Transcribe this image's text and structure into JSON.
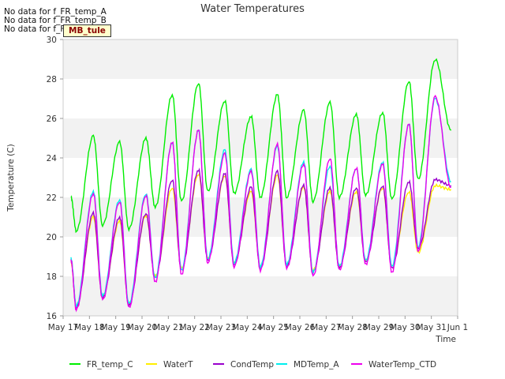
{
  "chart_data": {
    "type": "line",
    "title": "Water Temperatures",
    "xlabel": "Time",
    "ylabel": "Temperature (C)",
    "ylim": [
      16,
      30
    ],
    "xlim_days": [
      17,
      32
    ],
    "yticks": [
      16,
      18,
      20,
      22,
      24,
      26,
      28,
      30
    ],
    "xticks": [
      "May 17",
      "May 18",
      "May 19",
      "May 20",
      "May 21",
      "May 22",
      "May 23",
      "May 24",
      "May 25",
      "May 26",
      "May 27",
      "May 28",
      "May 29",
      "May 30",
      "May 31",
      "Jun 1"
    ],
    "grid": "horizontal bands",
    "legend_position": "bottom",
    "no_data_messages": [
      "No data for f_FR_temp_A",
      "No data for f_FR_temp_B",
      "No data for f_FD_Temp_1"
    ],
    "annotation": "MB_tule",
    "series": [
      {
        "name": "FR_temp_C",
        "color": "#00ee00",
        "daily_min": [
          20.3,
          20.6,
          20.4,
          21.5,
          21.8,
          22.3,
          22.2,
          22.0,
          22.0,
          21.8,
          22.0,
          22.1,
          21.9,
          22.9
        ],
        "daily_max": [
          25.1,
          24.8,
          25.0,
          27.2,
          27.8,
          26.9,
          26.1,
          27.2,
          26.4,
          26.8,
          26.2,
          26.3,
          27.9,
          29.0
        ],
        "start": 22.0,
        "end": 25.4
      },
      {
        "name": "WaterT",
        "color": "#ffee00",
        "daily_min": [
          16.5,
          17.0,
          16.6,
          18.0,
          18.4,
          18.9,
          18.7,
          18.5,
          18.6,
          18.3,
          18.5,
          18.8,
          18.5,
          19.2
        ],
        "daily_max": [
          21.0,
          20.8,
          21.1,
          22.5,
          23.2,
          23.1,
          22.3,
          23.1,
          22.5,
          22.3,
          22.3,
          22.5,
          22.3,
          22.6
        ],
        "start": 18.7,
        "end": 22.4
      },
      {
        "name": "CondTemp",
        "color": "#9900cc",
        "daily_min": [
          16.4,
          16.9,
          16.5,
          17.9,
          18.3,
          18.8,
          18.6,
          18.4,
          18.5,
          18.2,
          18.4,
          18.7,
          18.4,
          19.4
        ],
        "daily_max": [
          21.2,
          21.0,
          21.2,
          22.9,
          23.4,
          23.2,
          22.5,
          23.3,
          22.6,
          22.5,
          22.5,
          22.6,
          22.8,
          22.9
        ],
        "start": 18.8,
        "end": 22.6
      },
      {
        "name": "MDTemp_A",
        "color": "#00eeee",
        "daily_min": [
          16.5,
          17.0,
          16.6,
          17.9,
          18.3,
          18.9,
          18.7,
          18.5,
          18.6,
          18.2,
          18.5,
          18.8,
          18.5,
          19.5
        ],
        "daily_max": [
          22.3,
          21.9,
          22.2,
          24.8,
          25.4,
          24.4,
          23.4,
          24.6,
          23.8,
          23.6,
          23.5,
          23.8,
          25.7,
          27.0
        ],
        "start": 18.9,
        "end": 22.8
      },
      {
        "name": "WaterTemp_CTD",
        "color": "#ee00ee",
        "daily_min": [
          16.3,
          16.8,
          16.4,
          17.7,
          18.1,
          18.7,
          18.5,
          18.3,
          18.4,
          18.0,
          18.3,
          18.6,
          18.2,
          19.3
        ],
        "daily_max": [
          22.2,
          21.8,
          22.1,
          24.8,
          25.4,
          24.2,
          23.3,
          24.7,
          23.7,
          24.0,
          23.5,
          23.7,
          25.7,
          27.1
        ],
        "start": 18.8,
        "end": 22.5
      }
    ]
  }
}
